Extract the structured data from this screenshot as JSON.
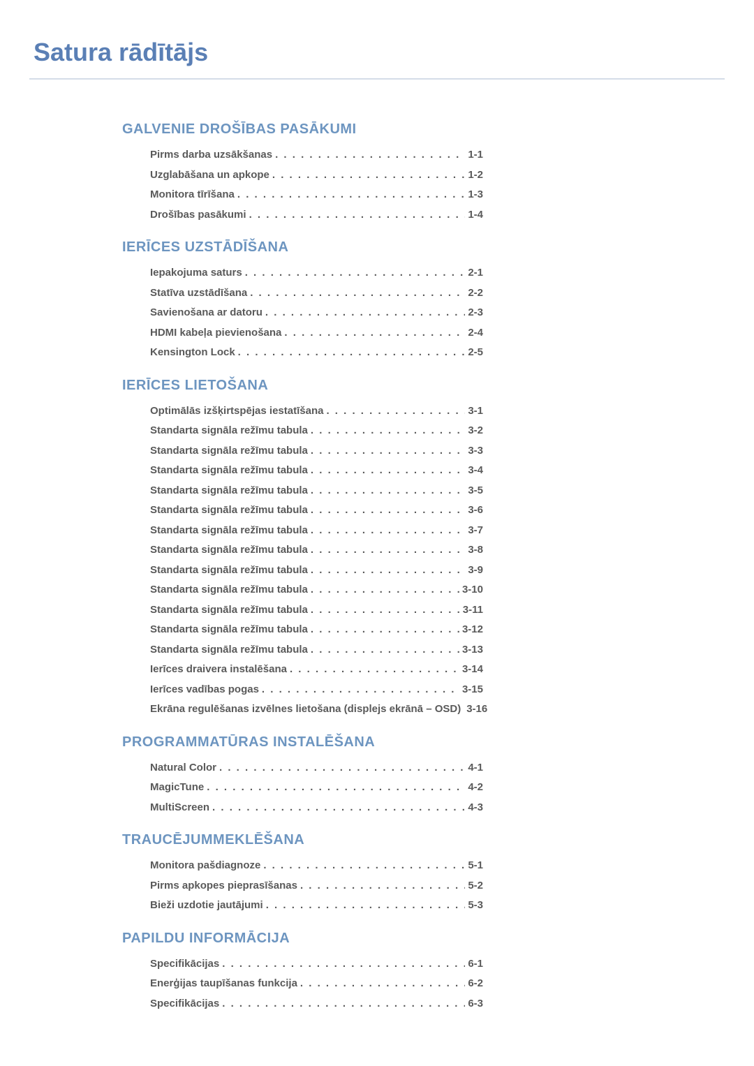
{
  "title": "Satura rādītājs",
  "colors": {
    "title": "#5a7fb5",
    "heading": "#6d95c0",
    "text": "#5a5a5a",
    "underline": "#d4dce8",
    "background": "#ffffff"
  },
  "typography": {
    "title_fontsize": 36,
    "heading_fontsize": 20,
    "entry_fontsize": 15,
    "font_family": "Arial"
  },
  "sections": [
    {
      "heading": "GALVENIE DROŠĪBAS PASĀKUMI",
      "entries": [
        {
          "label": "Pirms darba uzsākšanas",
          "page": "1-1"
        },
        {
          "label": "Uzglabāšana un apkope",
          "page": "1-2"
        },
        {
          "label": "Monitora tīrīšana",
          "page": "1-3"
        },
        {
          "label": "Drošības pasākumi",
          "page": "1-4"
        }
      ]
    },
    {
      "heading": "IERĪCES UZSTĀDĪŠANA",
      "entries": [
        {
          "label": "Iepakojuma saturs",
          "page": "2-1"
        },
        {
          "label": "Statīva uzstādīšana",
          "page": "2-2"
        },
        {
          "label": "Savienošana ar datoru",
          "page": "2-3"
        },
        {
          "label": "HDMI kabeļa pievienošana",
          "page": "2-4"
        },
        {
          "label": "Kensington Lock",
          "page": "2-5"
        }
      ]
    },
    {
      "heading": "IERĪCES LIETOŠANA",
      "entries": [
        {
          "label": "Optimālās izšķirtspējas iestatīšana",
          "page": "3-1"
        },
        {
          "label": "Standarta signāla režīmu tabula",
          "page": "3-2"
        },
        {
          "label": "Standarta signāla režīmu tabula",
          "page": "3-3"
        },
        {
          "label": "Standarta signāla režīmu tabula",
          "page": "3-4"
        },
        {
          "label": "Standarta signāla režīmu tabula",
          "page": "3-5"
        },
        {
          "label": "Standarta signāla režīmu tabula",
          "page": "3-6"
        },
        {
          "label": "Standarta signāla režīmu tabula",
          "page": "3-7"
        },
        {
          "label": "Standarta signāla režīmu tabula",
          "page": "3-8"
        },
        {
          "label": "Standarta signāla režīmu tabula",
          "page": "3-9"
        },
        {
          "label": "Standarta signāla režīmu tabula",
          "page": "3-10"
        },
        {
          "label": "Standarta signāla režīmu tabula",
          "page": "3-11"
        },
        {
          "label": "Standarta signāla režīmu tabula",
          "page": "3-12"
        },
        {
          "label": "Standarta signāla režīmu tabula",
          "page": "3-13"
        },
        {
          "label": "Ierīces draivera instalēšana",
          "page": "3-14"
        },
        {
          "label": "Ierīces vadības pogas",
          "page": "3-15"
        },
        {
          "label": "Ekrāna regulēšanas izvēlnes lietošana (displejs ekrānā – OSD)",
          "page": "3-16",
          "long": true
        }
      ]
    },
    {
      "heading": "PROGRAMMATŪRAS INSTALĒŠANA",
      "entries": [
        {
          "label": "Natural Color",
          "page": "4-1"
        },
        {
          "label": "MagicTune",
          "page": "4-2"
        },
        {
          "label": "MultiScreen",
          "page": "4-3"
        }
      ]
    },
    {
      "heading": "TRAUCĒJUMMEKLĒŠANA",
      "entries": [
        {
          "label": "Monitora pašdiagnoze",
          "page": "5-1"
        },
        {
          "label": "Pirms apkopes pieprasīšanas",
          "page": "5-2"
        },
        {
          "label": "Bieži uzdotie jautājumi",
          "page": "5-3"
        }
      ]
    },
    {
      "heading": "PAPILDU INFORMĀCIJA",
      "entries": [
        {
          "label": "Specifikācijas",
          "page": "6-1"
        },
        {
          "label": "Enerģijas taupīšanas funkcija",
          "page": "6-2"
        },
        {
          "label": "Specifikācijas",
          "page": "6-3"
        }
      ]
    }
  ]
}
